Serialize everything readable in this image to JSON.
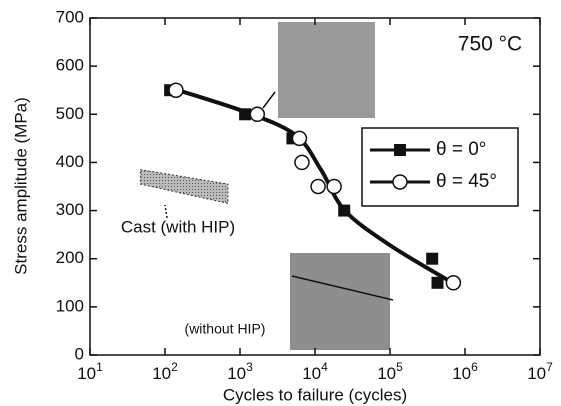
{
  "chart_data": {
    "type": "scatter",
    "log_x": true,
    "x_label": "Cycles to failure (cycles)",
    "y_label": "Stress amplitude (MPa)",
    "annotations": [
      "750 °C",
      "Cast (with HIP)",
      "(without HIP)"
    ],
    "xlim": [
      10,
      10000000
    ],
    "xticks": [
      {
        "value": 10,
        "label": "10",
        "exponent": "1"
      },
      {
        "value": 100,
        "label": "10",
        "exponent": "2"
      },
      {
        "value": 1000,
        "label": "10",
        "exponent": "3"
      },
      {
        "value": 10000,
        "label": "10",
        "exponent": "4"
      },
      {
        "value": 100000,
        "label": "10",
        "exponent": "5"
      },
      {
        "value": 1000000,
        "label": "10",
        "exponent": "6"
      },
      {
        "value": 10000000,
        "label": "10",
        "exponent": "7"
      }
    ],
    "ylim": [
      0,
      700
    ],
    "yticks": [
      0,
      100,
      200,
      300,
      400,
      500,
      600,
      700
    ],
    "series": [
      {
        "name": "θ = 0°",
        "marker": "square",
        "color": "#111111",
        "x": [
          117,
          1170,
          5000,
          24500,
          365000,
          430000
        ],
        "values": [
          550,
          500,
          450,
          300,
          200,
          150
        ]
      },
      {
        "name": "θ = 45°",
        "marker": "circle",
        "color": "#ffffff",
        "x": [
          140,
          1700,
          6200,
          6700,
          11000,
          18000,
          700000
        ],
        "values": [
          550,
          500,
          450,
          400,
          350,
          350,
          150
        ]
      }
    ],
    "trend": {
      "x": [
        117,
        1170,
        5500,
        12000,
        25000,
        100000,
        600000
      ],
      "values": [
        555,
        505,
        457,
        385,
        300,
        228,
        155
      ]
    },
    "cast_band": {
      "x": [
        47,
        690
      ],
      "upper": [
        385,
        355
      ],
      "lower": [
        355,
        315
      ]
    }
  }
}
